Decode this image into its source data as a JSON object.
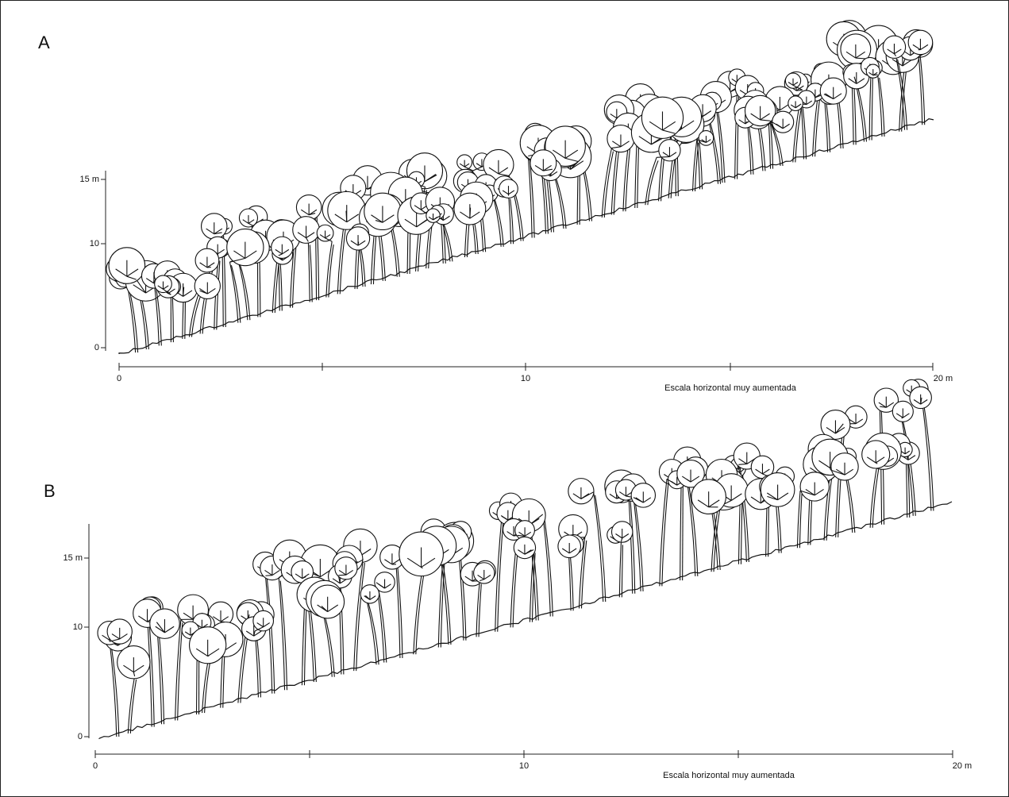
{
  "panels": [
    {
      "label": "A",
      "y_ticks": [
        "15 m",
        "10",
        "0"
      ],
      "x_ticks": [
        "0",
        "10",
        "20 m"
      ],
      "caption": "Escala horizontal muy aumentada"
    },
    {
      "label": "B",
      "y_ticks": [
        "15 m",
        "10",
        "0"
      ],
      "x_ticks": [
        "0",
        "10",
        "20 m"
      ],
      "caption": "Escala horizontal muy aumentada"
    }
  ]
}
